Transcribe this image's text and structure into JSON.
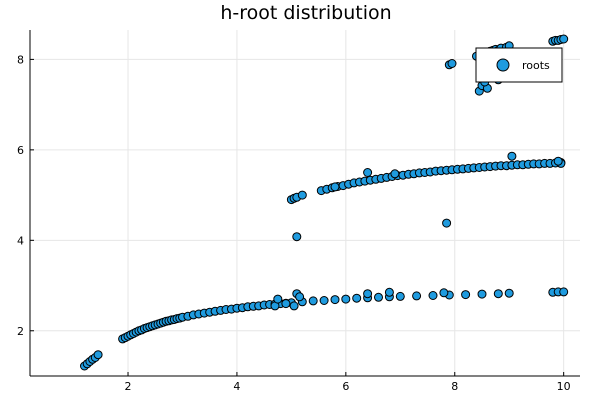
{
  "chart_data": {
    "type": "scatter",
    "title": "h-root distribution",
    "xlabel": "",
    "ylabel": "",
    "xlim": [
      0.2,
      10.3
    ],
    "ylim": [
      1.0,
      8.65
    ],
    "x_ticks": [
      2,
      4,
      6,
      8,
      10
    ],
    "y_ticks": [
      2,
      4,
      6,
      8
    ],
    "grid": true,
    "legend_position": "top-right",
    "colors": {
      "marker": "#1f9bdf",
      "edge": "#000000",
      "grid": "#e6e6e6"
    },
    "series": [
      {
        "name": "roots",
        "points": [
          [
            1.2,
            1.22
          ],
          [
            1.25,
            1.27
          ],
          [
            1.3,
            1.32
          ],
          [
            1.35,
            1.37
          ],
          [
            1.4,
            1.41
          ],
          [
            1.45,
            1.47
          ],
          [
            1.9,
            1.82
          ],
          [
            1.95,
            1.85
          ],
          [
            2.0,
            1.88
          ],
          [
            2.05,
            1.91
          ],
          [
            2.1,
            1.94
          ],
          [
            2.15,
            1.97
          ],
          [
            2.2,
            2.0
          ],
          [
            2.25,
            2.02
          ],
          [
            2.3,
            2.05
          ],
          [
            2.35,
            2.07
          ],
          [
            2.4,
            2.09
          ],
          [
            2.45,
            2.11
          ],
          [
            2.5,
            2.13
          ],
          [
            2.55,
            2.15
          ],
          [
            2.6,
            2.17
          ],
          [
            2.65,
            2.19
          ],
          [
            2.7,
            2.21
          ],
          [
            2.75,
            2.22
          ],
          [
            2.8,
            2.24
          ],
          [
            2.85,
            2.25
          ],
          [
            2.9,
            2.27
          ],
          [
            2.95,
            2.28
          ],
          [
            3.0,
            2.3
          ],
          [
            3.1,
            2.32
          ],
          [
            3.2,
            2.35
          ],
          [
            3.3,
            2.37
          ],
          [
            3.4,
            2.39
          ],
          [
            3.5,
            2.41
          ],
          [
            3.6,
            2.43
          ],
          [
            3.7,
            2.45
          ],
          [
            3.8,
            2.47
          ],
          [
            3.9,
            2.48
          ],
          [
            4.0,
            2.5
          ],
          [
            4.1,
            2.51
          ],
          [
            4.2,
            2.53
          ],
          [
            4.3,
            2.54
          ],
          [
            4.4,
            2.55
          ],
          [
            4.5,
            2.57
          ],
          [
            4.6,
            2.58
          ],
          [
            4.7,
            2.59
          ],
          [
            4.8,
            2.6
          ],
          [
            4.9,
            2.61
          ],
          [
            5.0,
            2.62
          ],
          [
            5.2,
            2.64
          ],
          [
            5.4,
            2.66
          ],
          [
            5.6,
            2.67
          ],
          [
            5.8,
            2.69
          ],
          [
            6.0,
            2.7
          ],
          [
            6.2,
            2.72
          ],
          [
            6.4,
            2.73
          ],
          [
            6.6,
            2.74
          ],
          [
            6.8,
            2.75
          ],
          [
            7.0,
            2.76
          ],
          [
            7.3,
            2.77
          ],
          [
            7.6,
            2.78
          ],
          [
            7.9,
            2.79
          ],
          [
            8.2,
            2.8
          ],
          [
            8.5,
            2.81
          ],
          [
            8.8,
            2.82
          ],
          [
            9.0,
            2.83
          ],
          [
            9.8,
            2.85
          ],
          [
            9.9,
            2.86
          ],
          [
            10.0,
            2.86
          ],
          [
            4.7,
            2.55
          ],
          [
            4.75,
            2.7
          ],
          [
            5.05,
            2.55
          ],
          [
            5.1,
            2.82
          ],
          [
            5.15,
            2.75
          ],
          [
            6.4,
            2.82
          ],
          [
            6.8,
            2.85
          ],
          [
            7.8,
            2.84
          ],
          [
            4.9,
            2.6
          ],
          [
            5.1,
            4.08
          ],
          [
            7.85,
            4.38
          ],
          [
            5.0,
            4.9
          ],
          [
            5.05,
            4.93
          ],
          [
            5.1,
            4.95
          ],
          [
            5.2,
            5.0
          ],
          [
            5.55,
            5.1
          ],
          [
            5.65,
            5.13
          ],
          [
            5.75,
            5.16
          ],
          [
            5.85,
            5.19
          ],
          [
            5.95,
            5.21
          ],
          [
            6.05,
            5.24
          ],
          [
            6.15,
            5.27
          ],
          [
            6.25,
            5.29
          ],
          [
            6.35,
            5.31
          ],
          [
            6.45,
            5.33
          ],
          [
            6.55,
            5.35
          ],
          [
            6.65,
            5.37
          ],
          [
            6.75,
            5.39
          ],
          [
            6.85,
            5.41
          ],
          [
            6.95,
            5.43
          ],
          [
            7.05,
            5.44
          ],
          [
            7.15,
            5.46
          ],
          [
            7.25,
            5.47
          ],
          [
            7.35,
            5.49
          ],
          [
            7.45,
            5.5
          ],
          [
            7.55,
            5.51
          ],
          [
            7.65,
            5.53
          ],
          [
            7.75,
            5.54
          ],
          [
            7.85,
            5.55
          ],
          [
            7.95,
            5.56
          ],
          [
            8.05,
            5.57
          ],
          [
            8.15,
            5.58
          ],
          [
            8.25,
            5.59
          ],
          [
            8.35,
            5.6
          ],
          [
            8.45,
            5.61
          ],
          [
            8.55,
            5.62
          ],
          [
            8.65,
            5.63
          ],
          [
            8.75,
            5.64
          ],
          [
            8.85,
            5.65
          ],
          [
            8.95,
            5.65
          ],
          [
            9.05,
            5.66
          ],
          [
            9.15,
            5.67
          ],
          [
            9.25,
            5.67
          ],
          [
            9.35,
            5.68
          ],
          [
            9.45,
            5.69
          ],
          [
            9.55,
            5.69
          ],
          [
            9.65,
            5.7
          ],
          [
            9.75,
            5.7
          ],
          [
            9.85,
            5.71
          ],
          [
            9.95,
            5.72
          ],
          [
            6.4,
            5.5
          ],
          [
            9.05,
            5.86
          ],
          [
            9.95,
            5.7
          ],
          [
            9.9,
            5.75
          ],
          [
            6.9,
            5.47
          ],
          [
            5.8,
            5.18
          ],
          [
            7.9,
            7.88
          ],
          [
            7.95,
            7.91
          ],
          [
            8.45,
            7.3
          ],
          [
            8.5,
            7.42
          ],
          [
            8.6,
            7.36
          ],
          [
            8.55,
            7.5
          ],
          [
            8.7,
            7.7
          ],
          [
            8.8,
            7.55
          ],
          [
            8.4,
            8.07
          ],
          [
            8.5,
            8.1
          ],
          [
            8.55,
            8.15
          ],
          [
            8.6,
            8.12
          ],
          [
            8.65,
            8.18
          ],
          [
            8.7,
            8.2
          ],
          [
            8.75,
            8.22
          ],
          [
            8.8,
            8.2
          ],
          [
            8.85,
            8.25
          ],
          [
            8.9,
            8.15
          ],
          [
            8.95,
            8.27
          ],
          [
            9.0,
            8.3
          ],
          [
            9.05,
            7.62
          ],
          [
            9.1,
            7.75
          ],
          [
            8.95,
            7.9
          ],
          [
            9.8,
            8.4
          ],
          [
            9.85,
            8.42
          ],
          [
            9.9,
            8.42
          ],
          [
            9.95,
            8.44
          ],
          [
            10.0,
            8.45
          ]
        ]
      }
    ]
  }
}
